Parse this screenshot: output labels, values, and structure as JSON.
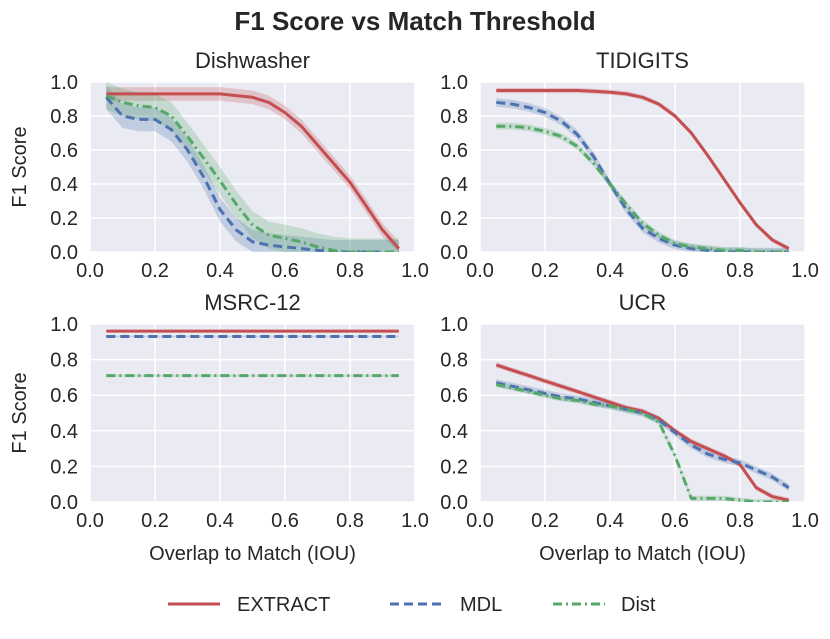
{
  "figure_title": "F1 Score vs Match Threshold",
  "colors": {
    "plot_bg": "#EAEAF2",
    "grid": "#FFFFFF",
    "text": "#262626",
    "EXTRACT": "#C44E52",
    "MDL": "#4C72B0",
    "Dist": "#55A868"
  },
  "legend": [
    {
      "name": "EXTRACT",
      "style": "solid"
    },
    {
      "name": "MDL",
      "style": "dashed"
    },
    {
      "name": "Dist",
      "style": "dashdot"
    }
  ],
  "chart_data": [
    {
      "type": "line",
      "title": "Dishwasher",
      "xlabel": "",
      "ylabel": "F1 Score",
      "xlim": [
        0,
        1
      ],
      "ylim": [
        0,
        1
      ],
      "xticks": [
        "0.0",
        "0.2",
        "0.4",
        "0.6",
        "0.8",
        "1.0"
      ],
      "yticks": [
        "0.0",
        "0.2",
        "0.4",
        "0.6",
        "0.8",
        "1.0"
      ],
      "x": [
        0.05,
        0.1,
        0.15,
        0.2,
        0.25,
        0.3,
        0.35,
        0.4,
        0.45,
        0.5,
        0.55,
        0.6,
        0.65,
        0.7,
        0.75,
        0.8,
        0.85,
        0.9,
        0.95
      ],
      "series": [
        {
          "name": "EXTRACT",
          "values": [
            0.93,
            0.93,
            0.93,
            0.93,
            0.93,
            0.93,
            0.93,
            0.93,
            0.92,
            0.91,
            0.88,
            0.82,
            0.74,
            0.63,
            0.52,
            0.41,
            0.27,
            0.13,
            0.02
          ],
          "band": 0.04
        },
        {
          "name": "MDL",
          "values": [
            0.91,
            0.8,
            0.78,
            0.78,
            0.72,
            0.6,
            0.44,
            0.25,
            0.13,
            0.06,
            0.04,
            0.03,
            0.02,
            0.01,
            0.0,
            0.0,
            0.0,
            0.0,
            0.0
          ],
          "band": 0.07
        },
        {
          "name": "Dist",
          "values": [
            0.92,
            0.88,
            0.86,
            0.85,
            0.8,
            0.68,
            0.55,
            0.42,
            0.28,
            0.16,
            0.1,
            0.08,
            0.06,
            0.03,
            0.01,
            0.0,
            0.0,
            0.0,
            0.0
          ],
          "band": 0.08
        }
      ]
    },
    {
      "type": "line",
      "title": "TIDIGITS",
      "xlabel": "",
      "ylabel": "",
      "xlim": [
        0,
        1
      ],
      "ylim": [
        0,
        1
      ],
      "xticks": [
        "0.0",
        "0.2",
        "0.4",
        "0.6",
        "0.8",
        "1.0"
      ],
      "yticks": [
        "0.0",
        "0.2",
        "0.4",
        "0.6",
        "0.8",
        "1.0"
      ],
      "x": [
        0.05,
        0.1,
        0.15,
        0.2,
        0.25,
        0.3,
        0.35,
        0.4,
        0.45,
        0.5,
        0.55,
        0.6,
        0.65,
        0.7,
        0.75,
        0.8,
        0.85,
        0.9,
        0.95
      ],
      "series": [
        {
          "name": "EXTRACT",
          "values": [
            0.95,
            0.95,
            0.95,
            0.95,
            0.95,
            0.95,
            0.945,
            0.94,
            0.93,
            0.91,
            0.87,
            0.8,
            0.7,
            0.57,
            0.43,
            0.29,
            0.16,
            0.07,
            0.02
          ],
          "band": 0.015
        },
        {
          "name": "MDL",
          "values": [
            0.88,
            0.87,
            0.85,
            0.82,
            0.77,
            0.69,
            0.56,
            0.4,
            0.25,
            0.14,
            0.08,
            0.04,
            0.02,
            0.01,
            0.0,
            0.0,
            0.0,
            0.0,
            0.0
          ],
          "band": 0.025
        },
        {
          "name": "Dist",
          "values": [
            0.74,
            0.74,
            0.73,
            0.71,
            0.68,
            0.62,
            0.52,
            0.4,
            0.28,
            0.17,
            0.1,
            0.05,
            0.03,
            0.02,
            0.01,
            0.01,
            0.0,
            0.0,
            0.0
          ],
          "band": 0.02
        }
      ]
    },
    {
      "type": "line",
      "title": "MSRC-12",
      "xlabel": "Overlap to Match (IOU)",
      "ylabel": "F1 Score",
      "xlim": [
        0,
        1
      ],
      "ylim": [
        0,
        1
      ],
      "xticks": [
        "0.0",
        "0.2",
        "0.4",
        "0.6",
        "0.8",
        "1.0"
      ],
      "yticks": [
        "0.0",
        "0.2",
        "0.4",
        "0.6",
        "0.8",
        "1.0"
      ],
      "x": [
        0.05,
        0.1,
        0.15,
        0.2,
        0.25,
        0.3,
        0.35,
        0.4,
        0.45,
        0.5,
        0.55,
        0.6,
        0.65,
        0.7,
        0.75,
        0.8,
        0.85,
        0.9,
        0.95
      ],
      "series": [
        {
          "name": "EXTRACT",
          "values": [
            0.96,
            0.96,
            0.96,
            0.96,
            0.96,
            0.96,
            0.96,
            0.96,
            0.96,
            0.96,
            0.96,
            0.96,
            0.96,
            0.96,
            0.96,
            0.96,
            0.96,
            0.96,
            0.96
          ],
          "band": 0.004
        },
        {
          "name": "MDL",
          "values": [
            0.93,
            0.93,
            0.93,
            0.93,
            0.93,
            0.93,
            0.93,
            0.93,
            0.93,
            0.93,
            0.93,
            0.93,
            0.93,
            0.93,
            0.93,
            0.93,
            0.93,
            0.93,
            0.93
          ],
          "band": 0.004
        },
        {
          "name": "Dist",
          "values": [
            0.71,
            0.71,
            0.71,
            0.71,
            0.71,
            0.71,
            0.71,
            0.71,
            0.71,
            0.71,
            0.71,
            0.71,
            0.71,
            0.71,
            0.71,
            0.71,
            0.71,
            0.71,
            0.71
          ],
          "band": 0.006
        }
      ]
    },
    {
      "type": "line",
      "title": "UCR",
      "xlabel": "Overlap to Match (IOU)",
      "ylabel": "",
      "xlim": [
        0,
        1
      ],
      "ylim": [
        0,
        1
      ],
      "xticks": [
        "0.0",
        "0.2",
        "0.4",
        "0.6",
        "0.8",
        "1.0"
      ],
      "yticks": [
        "0.0",
        "0.2",
        "0.4",
        "0.6",
        "0.8",
        "1.0"
      ],
      "x": [
        0.05,
        0.1,
        0.15,
        0.2,
        0.25,
        0.3,
        0.35,
        0.4,
        0.45,
        0.5,
        0.55,
        0.6,
        0.65,
        0.7,
        0.75,
        0.8,
        0.85,
        0.9,
        0.95
      ],
      "series": [
        {
          "name": "EXTRACT",
          "values": [
            0.77,
            0.74,
            0.71,
            0.68,
            0.65,
            0.62,
            0.59,
            0.56,
            0.53,
            0.51,
            0.47,
            0.4,
            0.34,
            0.3,
            0.26,
            0.21,
            0.08,
            0.03,
            0.01
          ],
          "band": 0.015
        },
        {
          "name": "MDL",
          "values": [
            0.67,
            0.65,
            0.63,
            0.61,
            0.59,
            0.58,
            0.56,
            0.54,
            0.52,
            0.5,
            0.46,
            0.39,
            0.32,
            0.27,
            0.24,
            0.22,
            0.18,
            0.14,
            0.08
          ],
          "band": 0.02
        },
        {
          "name": "Dist",
          "values": [
            0.66,
            0.64,
            0.62,
            0.6,
            0.58,
            0.57,
            0.55,
            0.54,
            0.52,
            0.5,
            0.45,
            0.26,
            0.02,
            0.02,
            0.02,
            0.01,
            0.0,
            0.0,
            0.0
          ],
          "band": 0.015
        }
      ]
    }
  ]
}
